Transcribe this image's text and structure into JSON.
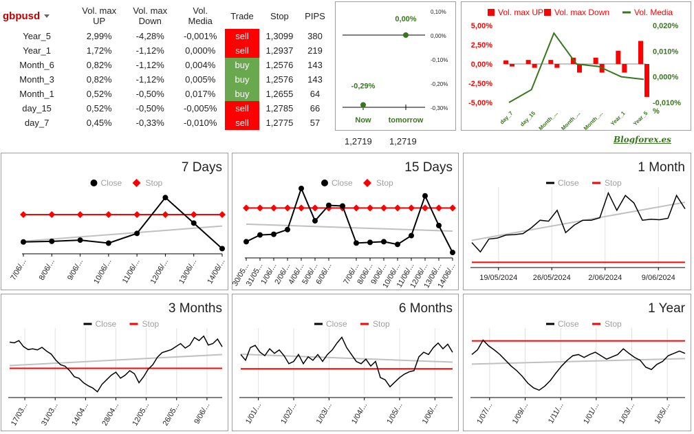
{
  "table": {
    "symbol": "gbpusd",
    "headers": [
      "Vol. max\nUP",
      "Vol. max\nDown",
      "Vol.\nMedia",
      "Trade",
      "Stop",
      "PIPS"
    ],
    "rows": [
      {
        "name": "Year_5",
        "up": "2,99%",
        "down": "-4,28%",
        "media": "-0,001%",
        "trade": "sell",
        "stop": "1,3099",
        "pips": "380"
      },
      {
        "name": "Year_1",
        "up": "1,72%",
        "down": "-1,12%",
        "media": "0,000%",
        "trade": "sell",
        "stop": "1,2937",
        "pips": "219"
      },
      {
        "name": "Month_6",
        "up": "0,82%",
        "down": "-1,12%",
        "media": "0,004%",
        "trade": "buy",
        "stop": "1,2576",
        "pips": "143"
      },
      {
        "name": "Month_3",
        "up": "0,82%",
        "down": "-1,12%",
        "media": "0,005%",
        "trade": "buy",
        "stop": "1,2576",
        "pips": "143"
      },
      {
        "name": "Month_1",
        "up": "0,52%",
        "down": "-0,50%",
        "media": "0,017%",
        "trade": "buy",
        "stop": "1,2655",
        "pips": "64"
      },
      {
        "name": "day_15",
        "up": "0,52%",
        "down": "-0,50%",
        "media": "-0,005%",
        "trade": "sell",
        "stop": "1,2785",
        "pips": "66"
      },
      {
        "name": "day_7",
        "up": "0,45%",
        "down": "-0,33%",
        "media": "-0,010%",
        "trade": "sell",
        "stop": "1,2775",
        "pips": "57"
      }
    ]
  },
  "colors": {
    "sell": "#ff0000",
    "buy": "#6aa84f",
    "up": "#ff0000",
    "down": "#ff0000",
    "media": "#38761d",
    "close": "#000000",
    "stop": "#ff0000",
    "trend": "#c0c0c0"
  },
  "now_panel": {
    "now_label": "Now",
    "tomorrow_label": "tomorrow",
    "now_value": "-0,29%",
    "tomorrow_value": "0,00%",
    "now_price": "1,2719",
    "tomorrow_price": "1,2719",
    "y_ticks": [
      "0,10%",
      "0,00%",
      "-0,10%",
      "-0,20%",
      "-0,30%"
    ]
  },
  "brand": "Blogforex.es",
  "chart_data": [
    {
      "type": "bar",
      "id": "summary",
      "categories": [
        "day_7",
        "day_15",
        "Month_1",
        "Month_3",
        "Month_6",
        "Year_1",
        "Year_5"
      ],
      "series": [
        {
          "name": "Vol. max UP",
          "values": [
            0.45,
            0.52,
            0.52,
            0.82,
            0.82,
            1.72,
            2.99
          ]
        },
        {
          "name": "Vol. max Down",
          "values": [
            -0.33,
            -0.5,
            -0.5,
            -1.12,
            -1.12,
            -1.12,
            -4.28
          ]
        },
        {
          "name": "Vol. Media",
          "axis": "right",
          "values": [
            -0.01,
            -0.005,
            0.017,
            0.005,
            0.004,
            0.0,
            -0.001
          ]
        }
      ],
      "y_ticks": [
        "5,00%",
        "2,50%",
        "0,00%",
        "-2,50%",
        "-5,00%"
      ],
      "y2_ticks": [
        "0,020%",
        "0,010%",
        "0,000%",
        "-0,010%",
        "%"
      ],
      "x_ticks": [
        "day_7",
        "day_15",
        "Month_...",
        "Month_...",
        "Month_...",
        "Year_1",
        "Year_5"
      ],
      "ylim": [
        -5,
        5
      ],
      "y2lim": [
        -0.01,
        0.02
      ],
      "legend": "top"
    },
    {
      "type": "line",
      "id": "d7",
      "title": "7 Days",
      "legend": [
        "Close",
        "Stop"
      ],
      "x_ticks": [
        "7/06/...",
        "8/06/...",
        "9/06/...",
        "10/06/...",
        "11/06/...",
        "12/06/...",
        "13/06/...",
        "14/06/..."
      ],
      "close": [
        1.273,
        1.2731,
        1.2733,
        1.2728,
        1.2744,
        1.2803,
        1.2761,
        1.2719
      ],
      "stop": 1.2775,
      "ylim": [
        1.2715,
        1.281
      ]
    },
    {
      "type": "line",
      "id": "d15",
      "title": "15 Days",
      "legend": [
        "Close",
        "Stop"
      ],
      "x_ticks": [
        "30/05...",
        "31/05...",
        "1/06/...",
        "2/06/...",
        "4/06/...",
        "5/06/...",
        "6/06/...",
        "7/06/...",
        "8/06/...",
        "9/06/...",
        "10/06/...",
        "11/06/...",
        "12/06/...",
        "13/06/...",
        "14/06/..."
      ],
      "close": [
        1.2735,
        1.2745,
        1.2746,
        1.2753,
        1.2814,
        1.2766,
        1.2789,
        1.2788,
        1.2733,
        1.2734,
        1.2735,
        1.2731,
        1.2744,
        1.2803,
        1.2759,
        1.2719
      ],
      "stop": 1.2785,
      "ylim": [
        1.2715,
        1.2815
      ]
    },
    {
      "type": "line",
      "id": "m1",
      "title": "1 Month",
      "legend": [
        "Close",
        "Stop"
      ],
      "x_ticks": [
        "19/05/2024",
        "26/05/2024",
        "2/06/2024",
        "9/06/2024"
      ],
      "close": [
        1.2695,
        1.2676,
        1.2702,
        1.2704,
        1.271,
        1.2711,
        1.2713,
        1.2725,
        1.274,
        1.2738,
        1.276,
        1.2715,
        1.273,
        1.274,
        1.274,
        1.2745,
        1.2795,
        1.276,
        1.279,
        1.2775,
        1.274,
        1.2742,
        1.2741,
        1.2744,
        1.279,
        1.2763
      ],
      "stop": 1.2655,
      "ylim": [
        1.265,
        1.28
      ]
    },
    {
      "type": "line",
      "id": "m3",
      "title": "3 Months",
      "legend": [
        "Close",
        "Stop"
      ],
      "x_ticks": [
        "17/03...",
        "31/03...",
        "14/04...",
        "28/04...",
        "12/05...",
        "26/05...",
        "9/06/..."
      ],
      "close": [
        1.275,
        1.2745,
        1.276,
        1.272,
        1.27,
        1.2705,
        1.2698,
        1.2715,
        1.269,
        1.267,
        1.263,
        1.26,
        1.259,
        1.256,
        1.252,
        1.251,
        1.248,
        1.246,
        1.2445,
        1.242,
        1.247,
        1.25,
        1.253,
        1.255,
        1.251,
        1.253,
        1.256,
        1.254,
        1.248,
        1.252,
        1.257,
        1.26,
        1.265,
        1.268,
        1.269,
        1.27,
        1.272,
        1.274,
        1.271,
        1.273,
        1.278,
        1.276,
        1.279,
        1.273,
        1.274,
        1.277,
        1.2719
      ],
      "stop": 1.2576,
      "ylim": [
        1.24,
        1.282
      ]
    },
    {
      "type": "line",
      "id": "m6",
      "title": "6 Months",
      "legend": [
        "Close",
        "Stop"
      ],
      "x_ticks": [
        "1/01/...",
        "1/02/...",
        "1/03/...",
        "1/04/...",
        "1/05/...",
        "1/06/..."
      ],
      "close": [
        1.27,
        1.265,
        1.276,
        1.278,
        1.272,
        1.269,
        1.275,
        1.271,
        1.274,
        1.269,
        1.262,
        1.264,
        1.27,
        1.262,
        1.268,
        1.265,
        1.27,
        1.264,
        1.27,
        1.274,
        1.28,
        1.285,
        1.276,
        1.27,
        1.264,
        1.262,
        1.266,
        1.26,
        1.264,
        1.25,
        1.248,
        1.242,
        1.246,
        1.25,
        1.253,
        1.255,
        1.256,
        1.268,
        1.272,
        1.27,
        1.276,
        1.28,
        1.275,
        1.279,
        1.2719
      ],
      "stop": 1.2576,
      "ylim": [
        1.235,
        1.29
      ]
    },
    {
      "type": "line",
      "id": "y1",
      "title": "1 Year",
      "legend": [
        "Close",
        "Stop"
      ],
      "x_ticks": [
        "1/07/...",
        "1/09/...",
        "1/11/...",
        "1/01/...",
        "1/03/...",
        "1/05/..."
      ],
      "close": [
        1.27,
        1.278,
        1.295,
        1.285,
        1.278,
        1.27,
        1.26,
        1.25,
        1.242,
        1.232,
        1.22,
        1.212,
        1.208,
        1.215,
        1.225,
        1.238,
        1.25,
        1.26,
        1.268,
        1.27,
        1.265,
        1.27,
        1.274,
        1.268,
        1.262,
        1.266,
        1.27,
        1.28,
        1.272,
        1.265,
        1.26,
        1.248,
        1.244,
        1.253,
        1.258,
        1.268,
        1.272,
        1.276,
        1.2719
      ],
      "stop": 1.2937,
      "ylim": [
        1.2,
        1.31
      ]
    }
  ]
}
